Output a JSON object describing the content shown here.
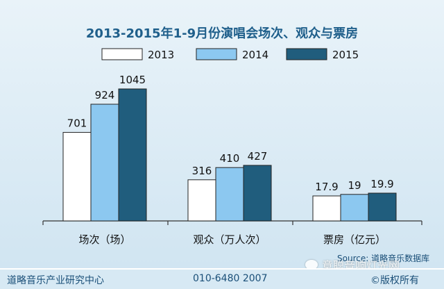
{
  "chart_data": {
    "type": "bar",
    "title": "2013-2015年1-9月份演唱会场次、观众与票房",
    "categories": [
      "场次（场）",
      "观众（万人次）",
      "票房（亿元）"
    ],
    "series": [
      {
        "name": "2013",
        "values": [
          701,
          316,
          17.9
        ],
        "labels": [
          "701",
          "316",
          "17.9"
        ],
        "color": "#ffffff"
      },
      {
        "name": "2014",
        "values": [
          924,
          410,
          19
        ],
        "labels": [
          "924",
          "410",
          "19"
        ],
        "color": "#8cc8f0"
      },
      {
        "name": "2015",
        "values": [
          1045,
          427,
          19.9
        ],
        "labels": [
          "1045",
          "427",
          "19.9"
        ],
        "color": "#205d7d"
      }
    ],
    "legend_position": "top",
    "grid": false
  },
  "source_text": "Source: 道略音乐数据库",
  "footer": {
    "org": "道略音乐产业研究中心",
    "phone": "010-6480 2007",
    "copyright": "©版权所有"
  },
  "watermark": "意聪音响灯光网"
}
